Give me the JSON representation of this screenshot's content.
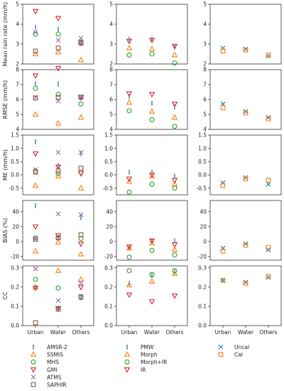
{
  "figure": {
    "row_labels": [
      "Mean rain rate (mm/h)",
      "RMSE (mm/h)",
      "ME (mm/h)",
      "BIAS (%)",
      "CC"
    ],
    "category_labels": [
      "Urban",
      "Water",
      "Others"
    ]
  },
  "styles": {
    "AMSR-2": {
      "marker": "vline",
      "color": "#1f77b4"
    },
    "SSMIS": {
      "marker": "tri-up",
      "color": "#ff7f0e"
    },
    "MHS": {
      "marker": "circle",
      "color": "#2ca02c"
    },
    "GMI": {
      "marker": "tri-down",
      "color": "#d62728"
    },
    "ATMS": {
      "marker": "x",
      "color": "#9467bd"
    },
    "SAPHIR": {
      "marker": "square",
      "color": "#8c564b"
    },
    "PMW": {
      "marker": "vline",
      "color": "#1f77b4"
    },
    "Morph": {
      "marker": "tri-up",
      "color": "#ff7f0e"
    },
    "Morph+IR": {
      "marker": "circle",
      "color": "#2ca02c"
    },
    "IR": {
      "marker": "tri-down",
      "color": "#d62728"
    },
    "Uncal": {
      "marker": "x",
      "color": "#1f77b4"
    },
    "Cal": {
      "marker": "square",
      "color": "#ff7f0e"
    }
  },
  "legends": [
    {
      "items": [
        "AMSR-2",
        "SSMIS",
        "MHS",
        "GMI",
        "ATMS",
        "SAPHIR"
      ]
    },
    {
      "items": [
        "PMW",
        "Morph",
        "Morph+IR",
        "IR"
      ]
    },
    {
      "items": [
        "Uncal",
        "Cal"
      ]
    }
  ],
  "chart_data": [
    {
      "type": "scatter",
      "ylabel": "Mean rain rate (mm/h)",
      "ylim": [
        2,
        5
      ],
      "yticks": [
        "2",
        "3",
        "4",
        "5"
      ],
      "categories": [
        "Urban",
        "Water",
        "Others"
      ],
      "series": [
        {
          "name": "AMSR-2",
          "values": [
            3.85,
            3.75,
            3.1
          ]
        },
        {
          "name": "SSMIS",
          "values": [
            2.5,
            2.6,
            2.2
          ]
        },
        {
          "name": "MHS",
          "values": [
            3.5,
            3.5,
            3.1
          ]
        },
        {
          "name": "GMI",
          "values": [
            4.65,
            4.3,
            3.05
          ]
        },
        {
          "name": "ATMS",
          "values": [
            3.6,
            3.2,
            3.3
          ]
        },
        {
          "name": "SAPHIR",
          "values": [
            2.65,
            2.8,
            3.05
          ]
        }
      ]
    },
    {
      "type": "scatter",
      "ylim": [
        2,
        5
      ],
      "yticks": [
        "2",
        "3",
        "4",
        "5"
      ],
      "categories": [
        "Urban",
        "Water",
        "Others"
      ],
      "series": [
        {
          "name": "PMW",
          "values": [
            3.25,
            3.25,
            2.85
          ]
        },
        {
          "name": "Morph",
          "values": [
            2.8,
            2.75,
            2.45
          ]
        },
        {
          "name": "Morph+IR",
          "values": [
            2.45,
            2.5,
            2.05
          ]
        },
        {
          "name": "IR",
          "values": [
            3.15,
            3.2,
            2.9
          ]
        }
      ]
    },
    {
      "type": "scatter",
      "ylim": [
        2,
        5
      ],
      "yticks": [
        "2",
        "3",
        "4",
        "5"
      ],
      "categories": [
        "Urban",
        "Water",
        "Others"
      ],
      "series": [
        {
          "name": "Uncal",
          "values": [
            2.8,
            2.75,
            2.4
          ]
        },
        {
          "name": "Cal",
          "values": [
            2.65,
            2.7,
            2.45
          ]
        }
      ]
    },
    {
      "type": "scatter",
      "ylabel": "RMSE (mm/h)",
      "ylim": [
        4,
        8
      ],
      "yticks": [
        "4",
        "5",
        "6",
        "7",
        "8"
      ],
      "categories": [
        "Urban",
        "Water",
        "Others"
      ],
      "series": [
        {
          "name": "AMSR-2",
          "values": [
            7.05,
            7.05,
            6.1
          ]
        },
        {
          "name": "SSMIS",
          "values": [
            5.0,
            4.4,
            4.8
          ]
        },
        {
          "name": "MHS",
          "values": [
            6.75,
            6.35,
            5.7
          ]
        },
        {
          "name": "GMI",
          "values": [
            7.6,
            8.1,
            6.15
          ]
        },
        {
          "name": "ATMS",
          "values": [
            6.15,
            5.9,
            6.2
          ]
        },
        {
          "name": "SAPHIR",
          "values": [
            6.1,
            6.15,
            6.15
          ]
        }
      ]
    },
    {
      "type": "scatter",
      "ylim": [
        4,
        8
      ],
      "yticks": [
        "4",
        "5",
        "6",
        "7",
        "8"
      ],
      "categories": [
        "Urban",
        "Water",
        "Others"
      ],
      "series": [
        {
          "name": "PMW",
          "values": [
            6.2,
            5.75,
            5.5
          ]
        },
        {
          "name": "Morph",
          "values": [
            5.8,
            5.2,
            4.8
          ]
        },
        {
          "name": "Morph+IR",
          "values": [
            5.25,
            4.65,
            4.2
          ]
        },
        {
          "name": "IR",
          "values": [
            6.4,
            6.35,
            5.7
          ]
        }
      ]
    },
    {
      "type": "scatter",
      "ylim": [
        4,
        8
      ],
      "yticks": [
        "4",
        "5",
        "6",
        "7",
        "8"
      ],
      "categories": [
        "Urban",
        "Water",
        "Others"
      ],
      "series": [
        {
          "name": "Uncal",
          "values": [
            5.7,
            5.2,
            4.8
          ]
        },
        {
          "name": "Cal",
          "values": [
            5.45,
            5.1,
            4.7
          ]
        }
      ]
    },
    {
      "type": "scatter",
      "ylabel": "ME (mm/h)",
      "ylim": [
        -0.75,
        1.5
      ],
      "yticks": [
        "-0.5",
        "0.0",
        "0.5",
        "1.0",
        "1.5"
      ],
      "categories": [
        "Urban",
        "Water",
        "Others"
      ],
      "series": [
        {
          "name": "AMSR-2",
          "values": [
            1.25,
            0.35,
            0.8
          ]
        },
        {
          "name": "SSMIS",
          "values": [
            -0.4,
            -0.05,
            -0.5
          ]
        },
        {
          "name": "MHS",
          "values": [
            0.15,
            0.05,
            0.1
          ]
        },
        {
          "name": "GMI",
          "values": [
            0.8,
            0.3,
            0.05
          ]
        },
        {
          "name": "ATMS",
          "values": [
            0.2,
            0.85,
            0.85
          ]
        },
        {
          "name": "SAPHIR",
          "values": [
            0.1,
            0.15,
            0.25
          ]
        }
      ]
    },
    {
      "type": "scatter",
      "ylim": [
        -0.75,
        1.5
      ],
      "yticks": [
        "-0.5",
        "0.0",
        "0.5",
        "1.0",
        "1.5"
      ],
      "categories": [
        "Urban",
        "Water",
        "Others"
      ],
      "series": [
        {
          "name": "PMW",
          "values": [
            0.1,
            0.1,
            -0.05
          ]
        },
        {
          "name": "Morph",
          "values": [
            -0.25,
            -0.05,
            -0.35
          ]
        },
        {
          "name": "Morph+IR",
          "values": [
            -0.65,
            -0.35,
            -0.5
          ]
        },
        {
          "name": "IR",
          "values": [
            -0.15,
            0.0,
            -0.2
          ]
        }
      ]
    },
    {
      "type": "scatter",
      "ylim": [
        -0.75,
        1.5
      ],
      "yticks": [
        "-0.5",
        "0.0",
        "0.5",
        "1.0",
        "1.5"
      ],
      "categories": [
        "Urban",
        "Water",
        "Others"
      ],
      "series": [
        {
          "name": "Uncal",
          "values": [
            -0.3,
            -0.1,
            -0.35
          ]
        },
        {
          "name": "Cal",
          "values": [
            -0.4,
            -0.15,
            -0.2
          ]
        }
      ]
    },
    {
      "type": "scatter",
      "ylabel": "BIAS (%)",
      "ylim": [
        -25,
        55
      ],
      "yticks": [
        "-20",
        "0",
        "20",
        "40"
      ],
      "categories": [
        "Urban",
        "Water",
        "Others"
      ],
      "series": [
        {
          "name": "AMSR-2",
          "values": [
            48,
            5,
            32
          ]
        },
        {
          "name": "SSMIS",
          "values": [
            -13,
            -1,
            -17
          ]
        },
        {
          "name": "MHS",
          "values": [
            5,
            5,
            4
          ]
        },
        {
          "name": "GMI",
          "values": [
            20,
            8,
            -3
          ]
        },
        {
          "name": "ATMS",
          "values": [
            4,
            37,
            36
          ]
        },
        {
          "name": "SAPHIR",
          "values": [
            3,
            5,
            9
          ]
        }
      ]
    },
    {
      "type": "scatter",
      "ylim": [
        -25,
        55
      ],
      "yticks": [
        "-20",
        "0",
        "20",
        "40"
      ],
      "categories": [
        "Urban",
        "Water",
        "Others"
      ],
      "series": [
        {
          "name": "PMW",
          "values": [
            -8,
            1,
            1
          ]
        },
        {
          "name": "Morph",
          "values": [
            -9,
            -2,
            -11
          ]
        },
        {
          "name": "Morph+IR",
          "values": [
            -21,
            -12,
            -18
          ]
        },
        {
          "name": "IR",
          "values": [
            -7,
            1,
            -4
          ]
        }
      ]
    },
    {
      "type": "scatter",
      "ylim": [
        -25,
        55
      ],
      "yticks": [
        "-20",
        "0",
        "20",
        "40"
      ],
      "categories": [
        "Urban",
        "Water",
        "Others"
      ],
      "series": [
        {
          "name": "Uncal",
          "values": [
            -9,
            -3,
            -11
          ]
        },
        {
          "name": "Cal",
          "values": [
            -13,
            -5,
            -8
          ]
        }
      ]
    },
    {
      "type": "scatter",
      "ylabel": "CC",
      "ylim": [
        0,
        0.31
      ],
      "yticks": [
        "0.0",
        "0.1",
        "0.2",
        "0.3"
      ],
      "categories": [
        "Urban",
        "Water",
        "Others"
      ],
      "series": [
        {
          "name": "AMSR-2",
          "values": [
            0.2,
            0.09,
            0.15
          ]
        },
        {
          "name": "SSMIS",
          "values": [
            0.2,
            0.285,
            0.24
          ]
        },
        {
          "name": "MHS",
          "values": [
            0.24,
            0.195,
            0.145
          ]
        },
        {
          "name": "GMI",
          "values": [
            0.195,
            0.09,
            0.2
          ]
        },
        {
          "name": "ATMS",
          "values": [
            0.295,
            0.13,
            0.22
          ]
        },
        {
          "name": "SAPHIR",
          "values": [
            0.015,
            0.085,
            0.15
          ]
        }
      ]
    },
    {
      "type": "scatter",
      "ylim": [
        0,
        0.31
      ],
      "yticks": [
        "0.0",
        "0.1",
        "0.2",
        "0.3"
      ],
      "categories": [
        "Urban",
        "Water",
        "Others"
      ],
      "series": [
        {
          "name": "PMW",
          "values": [
            0.22,
            0.26,
            0.28
          ]
        },
        {
          "name": "Morph",
          "values": [
            0.21,
            0.23,
            0.27
          ]
        },
        {
          "name": "Morph+IR",
          "values": [
            0.285,
            0.265,
            0.285
          ]
        },
        {
          "name": "IR",
          "values": [
            0.16,
            0.125,
            0.155
          ]
        }
      ]
    },
    {
      "type": "scatter",
      "ylim": [
        0,
        0.31
      ],
      "yticks": [
        "0.0",
        "0.1",
        "0.2",
        "0.3"
      ],
      "categories": [
        "Urban",
        "Water",
        "Others"
      ],
      "series": [
        {
          "name": "Uncal",
          "values": [
            0.235,
            0.225,
            0.25
          ]
        },
        {
          "name": "Cal",
          "values": [
            0.235,
            0.22,
            0.255
          ]
        }
      ]
    }
  ]
}
